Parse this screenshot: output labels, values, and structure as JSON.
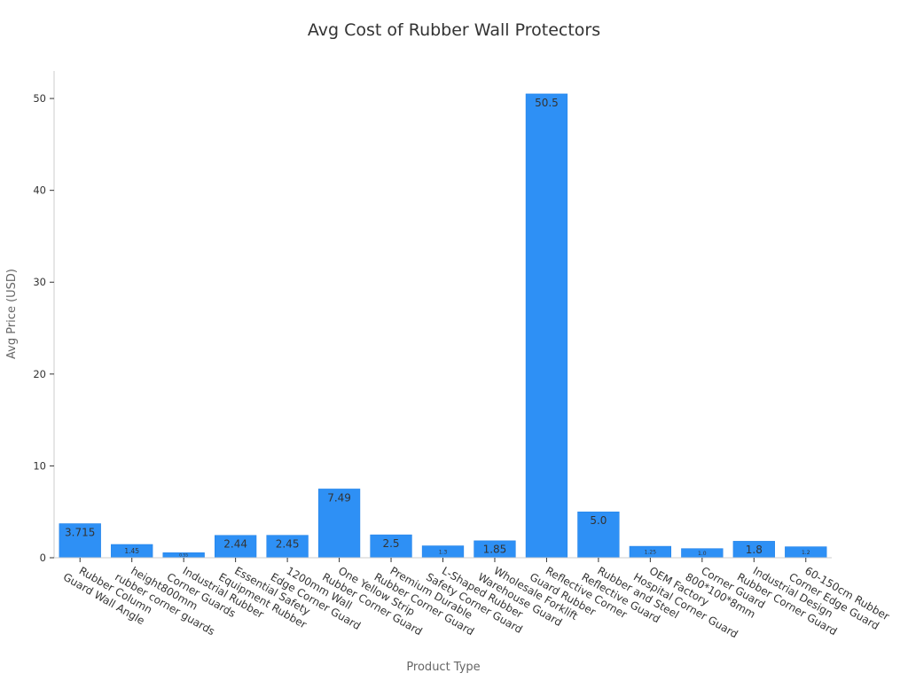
{
  "colors": {
    "bar": "#2e90f5",
    "bar_stroke": "#1f7fe6",
    "text": "#333333",
    "axis_title": "#666666"
  },
  "chart_data": {
    "type": "bar",
    "title": "Avg Cost of Rubber Wall Protectors",
    "xlabel": "Product Type",
    "ylabel": "Avg Price (USD)",
    "ylim": [
      0,
      53
    ],
    "yticks": [
      0,
      10,
      20,
      30,
      40,
      50
    ],
    "grid": false,
    "categories": [
      [
        "Rubber Column",
        "Guard Wall Angle"
      ],
      [
        "height800mm",
        "rubber corner guards"
      ],
      [
        "Industrial Rubber",
        "Corner Guards"
      ],
      [
        "Essential Safety",
        "Equipment Rubber"
      ],
      [
        "1200mm Wall",
        "Edge Corner Guard"
      ],
      [
        "One Yellow Strip",
        "Rubber Corner Guard"
      ],
      [
        "Premium Durable",
        "Rubber Corner Guard"
      ],
      [
        "L-Shaped Rubber",
        "Safety Corner Guard"
      ],
      [
        "Wholesale Forklift",
        "Warehouse Guard"
      ],
      [
        "Reflective Corner",
        "Guard Rubber"
      ],
      [
        "Rubber and Steel",
        "Reflective Guard"
      ],
      [
        "OEM Factory",
        "Hospital Corner Guard"
      ],
      [
        "Corner Guard",
        "800*100*8mm"
      ],
      [
        "Industrial Design",
        "Rubber Corner Guard"
      ],
      [
        "60-150cm Rubber",
        "Corner Edge Guard"
      ]
    ],
    "values": [
      3.715,
      1.45,
      0.55,
      2.44,
      2.45,
      7.49,
      2.5,
      1.3,
      1.85,
      50.5,
      5.0,
      1.25,
      1.0,
      1.8,
      1.2
    ],
    "value_labels": [
      "3.715",
      "1.45",
      "0.55",
      "2.44",
      "2.45",
      "7.49",
      "2.5",
      "1.3",
      "1.85",
      "50.5",
      "5.0",
      "1.25",
      "1.0",
      "1.8",
      "1.2"
    ]
  }
}
